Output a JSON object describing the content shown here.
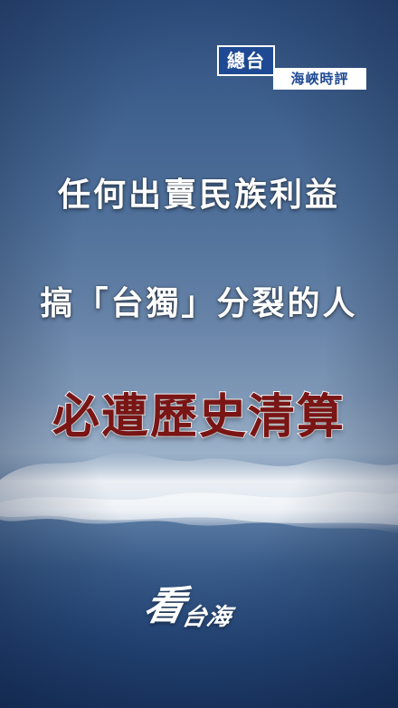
{
  "badge": {
    "main": "總台",
    "sub": "海峽時評"
  },
  "headline": {
    "line1": "任何出賣民族利益",
    "line2": "搞「台獨」分裂的人",
    "line3": "必遭歷史清算"
  },
  "logo": {
    "kan": "看",
    "rest": "台海"
  },
  "colors": {
    "sky_top": "#2f4f7f",
    "sea_bottom": "#1c3a66",
    "badge_blue": "#1f4a93",
    "headline_red": "#7a1515",
    "text_white": "#ffffff"
  }
}
